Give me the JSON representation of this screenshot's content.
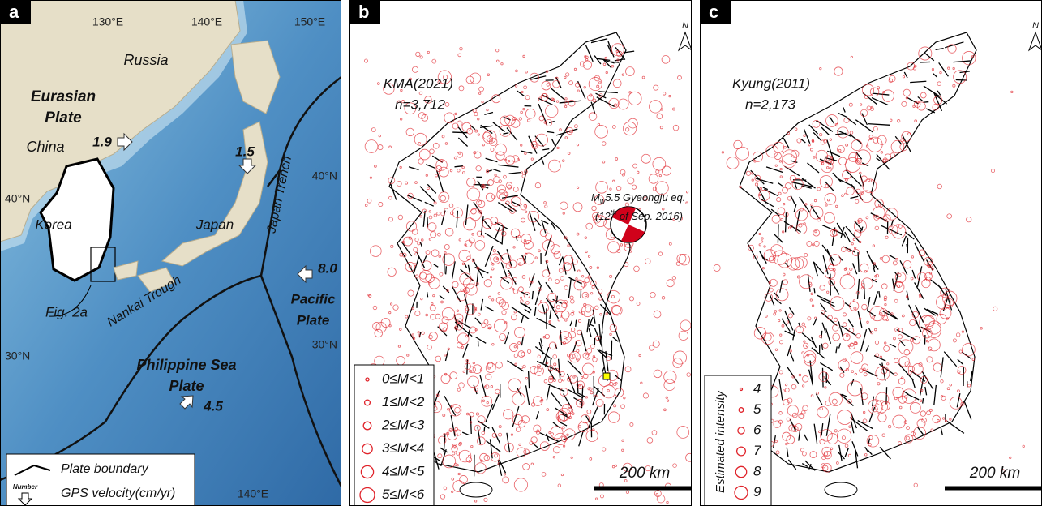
{
  "panel_a": {
    "label": "a",
    "lon_labels": [
      "130°E",
      "140°E",
      "150°E",
      "140°E"
    ],
    "lat_labels": [
      "40°N",
      "30°N",
      "40°N",
      "30°N"
    ],
    "places": [
      "Russia",
      "Eurasian",
      "Plate",
      "China",
      "Korea",
      "Japan",
      "Fig. 2a",
      "Nankai Trough",
      "Japan Trench",
      "Pacific",
      "Plate",
      "Philippine Sea",
      "Plate"
    ],
    "gps": [
      "1.9",
      "1.5",
      "8.0",
      "4.5"
    ],
    "legend": [
      "Plate boundary",
      "Number",
      "GPS velocity(cm/yr)"
    ]
  },
  "panel_b": {
    "label": "b",
    "catalog": "KMA(2021)",
    "count": "n=3,712",
    "annotation": {
      "m": "M",
      "sub": "w",
      "rest": "5.5 Gyeongju eq."
    },
    "date": {
      "pre": "(12",
      "sup": "th",
      "post": " of Sep. 2016)"
    },
    "legend": [
      "0≤M<1",
      "1≤M<2",
      "2≤M<3",
      "3≤M<4",
      "4≤M<5",
      "5≤M<6"
    ],
    "scale": "200 km",
    "north": "N"
  },
  "panel_c": {
    "label": "c",
    "catalog": "Kyung(2011)",
    "count": "n=2,173",
    "legend_title": "Estimated intensity",
    "legend": [
      "4",
      "5",
      "6",
      "7",
      "8",
      "9"
    ],
    "scale": "200 km",
    "north": "N"
  }
}
